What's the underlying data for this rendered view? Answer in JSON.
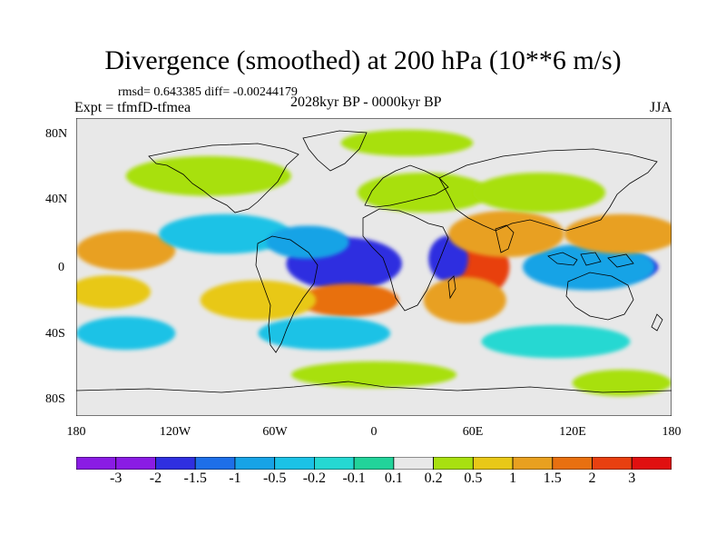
{
  "title": "Divergence (smoothed) at 200 hPa (10**6 m/s)",
  "stats": "rmsd= 0.643385 diff= -0.00244179",
  "experiment": "Expt = tfmfD-tfmea",
  "period": "2028kyr BP - 0000kyr BP",
  "season": "JJA",
  "y_axis_labels": [
    "80N",
    "40N",
    "0",
    "40S",
    "80S"
  ],
  "x_axis_labels": [
    "180",
    "120W",
    "60W",
    "0",
    "60E",
    "120E",
    "180"
  ],
  "colorbar": {
    "labels": [
      "-3",
      "-2",
      "-1.5",
      "-1",
      "-0.5",
      "-0.2",
      "-0.1",
      "0.1",
      "0.2",
      "0.5",
      "1",
      "1.5",
      "2",
      "3"
    ],
    "colors": [
      "#8a1ce4",
      "#2f2fe0",
      "#1e6fe8",
      "#17a3e6",
      "#1bc2e6",
      "#25d8d2",
      "#22d39a",
      "#e8e8e8",
      "#a8e010",
      "#e8c818",
      "#e8a020",
      "#e87010",
      "#e84010",
      "#e01010"
    ]
  },
  "map_data": {
    "background_color": "#e8e8e8",
    "blobs": [
      {
        "lon": -15,
        "lat": 2,
        "rx": 22,
        "ry": 10,
        "level": "-3"
      },
      {
        "lon": -18,
        "lat": 2,
        "rx": 35,
        "ry": 16,
        "level": "-2"
      },
      {
        "lon": 65,
        "lat": 2,
        "rx": 10,
        "ry": 12,
        "level": "3"
      },
      {
        "lon": 62,
        "lat": 0,
        "rx": 20,
        "ry": 18,
        "level": "2"
      },
      {
        "lon": 45,
        "lat": 5,
        "rx": 12,
        "ry": 14,
        "level": "-2"
      },
      {
        "lon": 150,
        "lat": 0,
        "rx": 22,
        "ry": 8,
        "level": "-2"
      },
      {
        "lon": 130,
        "lat": 0,
        "rx": 40,
        "ry": 14,
        "level": "-1"
      },
      {
        "lon": -15,
        "lat": -20,
        "rx": 30,
        "ry": 10,
        "level": "1.5"
      },
      {
        "lon": 55,
        "lat": -20,
        "rx": 25,
        "ry": 14,
        "level": "1"
      },
      {
        "lon": 80,
        "lat": 20,
        "rx": 35,
        "ry": 14,
        "level": "1"
      },
      {
        "lon": 150,
        "lat": 20,
        "rx": 35,
        "ry": 12,
        "level": "1"
      },
      {
        "lon": -150,
        "lat": 10,
        "rx": 30,
        "ry": 12,
        "level": "1"
      },
      {
        "lon": -160,
        "lat": -15,
        "rx": 25,
        "ry": 10,
        "level": "0.5"
      },
      {
        "lon": -70,
        "lat": -20,
        "rx": 35,
        "ry": 12,
        "level": "0.5"
      },
      {
        "lon": -90,
        "lat": 20,
        "rx": 40,
        "ry": 12,
        "level": "-0.5"
      },
      {
        "lon": -40,
        "lat": 15,
        "rx": 25,
        "ry": 10,
        "level": "-1"
      },
      {
        "lon": 30,
        "lat": 45,
        "rx": 40,
        "ry": 12,
        "level": "0.2"
      },
      {
        "lon": 100,
        "lat": 45,
        "rx": 40,
        "ry": 12,
        "level": "0.2"
      },
      {
        "lon": -100,
        "lat": 55,
        "rx": 50,
        "ry": 12,
        "level": "0.2"
      },
      {
        "lon": -30,
        "lat": -40,
        "rx": 40,
        "ry": 10,
        "level": "-0.5"
      },
      {
        "lon": 110,
        "lat": -45,
        "rx": 45,
        "ry": 10,
        "level": "-0.2"
      },
      {
        "lon": -150,
        "lat": -40,
        "rx": 30,
        "ry": 10,
        "level": "-0.5"
      },
      {
        "lon": 0,
        "lat": -65,
        "rx": 50,
        "ry": 8,
        "level": "0.2"
      },
      {
        "lon": 20,
        "lat": 75,
        "rx": 40,
        "ry": 8,
        "level": "0.2"
      },
      {
        "lon": 150,
        "lat": -70,
        "rx": 30,
        "ry": 8,
        "level": "0.2"
      }
    ]
  }
}
